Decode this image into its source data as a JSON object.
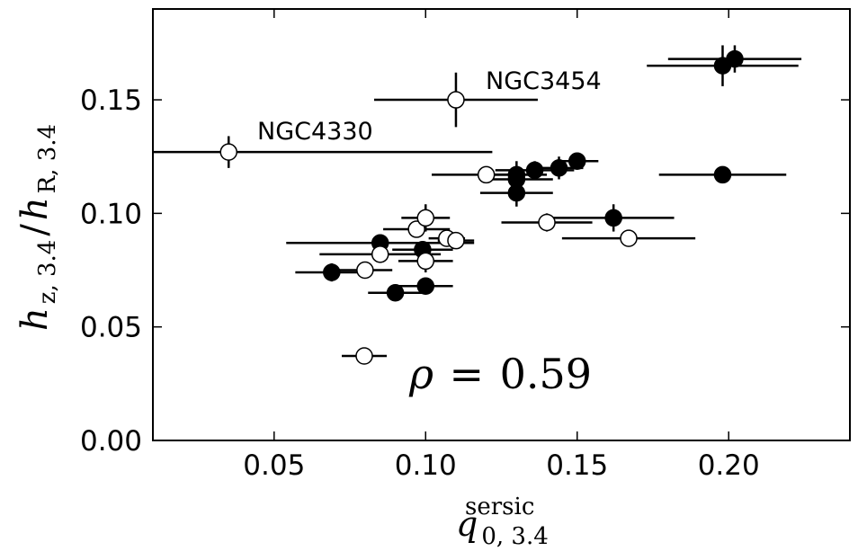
{
  "chart_data": {
    "type": "scatter",
    "title": "",
    "xlabel": {
      "symbol": "q",
      "subscript": "0, 3.4",
      "superscript": "sersic"
    },
    "ylabel": {
      "numerator_symbol": "h",
      "numerator_subscript": "z, 3.4",
      "slash": "/",
      "denominator_symbol": "h",
      "denominator_subscript": "R, 3.4"
    },
    "xlim": [
      0.01,
      0.24
    ],
    "ylim": [
      0.0,
      0.19
    ],
    "xticks": [
      {
        "value": 0.05,
        "label": "0.05"
      },
      {
        "value": 0.1,
        "label": "0.10"
      },
      {
        "value": 0.15,
        "label": "0.15"
      },
      {
        "value": 0.2,
        "label": "0.20"
      }
    ],
    "yticks": [
      {
        "value": 0.0,
        "label": "0.00"
      },
      {
        "value": 0.05,
        "label": "0.05"
      },
      {
        "value": 0.1,
        "label": "0.10"
      },
      {
        "value": 0.15,
        "label": "0.15"
      }
    ],
    "grid": false,
    "colors": {
      "filled": "#000000",
      "open_fill": "#ffffff",
      "edge": "#000000"
    },
    "series": [
      {
        "marker": "filled-circle",
        "points": [
          {
            "x": 0.069,
            "y": 0.074,
            "xerr": 0.012,
            "yerr": 0.004
          },
          {
            "x": 0.085,
            "y": 0.087,
            "xerr": 0.031,
            "yerr": 0.003
          },
          {
            "x": 0.09,
            "y": 0.065,
            "xerr": 0.009,
            "yerr": 0.002
          },
          {
            "x": 0.099,
            "y": 0.084,
            "xerr": 0.01,
            "yerr": 0.002
          },
          {
            "x": 0.1,
            "y": 0.068,
            "xerr": 0.009,
            "yerr": 0.003
          },
          {
            "x": 0.13,
            "y": 0.109,
            "xerr": 0.012,
            "yerr": 0.006
          },
          {
            "x": 0.13,
            "y": 0.115,
            "xerr": 0.012,
            "yerr": 0.003
          },
          {
            "x": 0.13,
            "y": 0.117,
            "xerr": 0.01,
            "yerr": 0.006
          },
          {
            "x": 0.136,
            "y": 0.119,
            "xerr": 0.013,
            "yerr": 0.004
          },
          {
            "x": 0.144,
            "y": 0.12,
            "xerr": 0.008,
            "yerr": 0.005
          },
          {
            "x": 0.15,
            "y": 0.123,
            "xerr": 0.007,
            "yerr": 0.003
          },
          {
            "x": 0.162,
            "y": 0.098,
            "xerr": 0.02,
            "yerr": 0.006
          },
          {
            "x": 0.198,
            "y": 0.117,
            "xerr": 0.021,
            "yerr": 0.002
          },
          {
            "x": 0.198,
            "y": 0.165,
            "xerr": 0.025,
            "yerr": 0.009
          },
          {
            "x": 0.202,
            "y": 0.168,
            "xerr": 0.022,
            "yerr": 0.006
          }
        ]
      },
      {
        "marker": "open-circle",
        "points": [
          {
            "x": 0.035,
            "y": 0.127,
            "xerr": 0.087,
            "yerr": 0.007,
            "label": "NGC4330"
          },
          {
            "x": 0.08,
            "y": 0.075,
            "xerr": 0.009,
            "yerr": 0.002
          },
          {
            "x": 0.085,
            "y": 0.082,
            "xerr": 0.02,
            "yerr": 0.002
          },
          {
            "x": 0.097,
            "y": 0.093,
            "xerr": 0.011,
            "yerr": 0.002
          },
          {
            "x": 0.1,
            "y": 0.098,
            "xerr": 0.008,
            "yerr": 0.006
          },
          {
            "x": 0.1,
            "y": 0.079,
            "xerr": 0.009,
            "yerr": 0.005
          },
          {
            "x": 0.107,
            "y": 0.089,
            "xerr": 0.006,
            "yerr": 0.002
          },
          {
            "x": 0.11,
            "y": 0.088,
            "xerr": 0.006,
            "yerr": 0.002
          },
          {
            "x": 0.11,
            "y": 0.15,
            "xerr": 0.027,
            "yerr": 0.012,
            "label": "NGC3454"
          },
          {
            "x": 0.12,
            "y": 0.117,
            "xerr": 0.018,
            "yerr": 0.002
          },
          {
            "x": 0.14,
            "y": 0.096,
            "xerr": 0.015,
            "yerr": 0.004
          },
          {
            "x": 0.167,
            "y": 0.089,
            "xerr": 0.022,
            "yerr": 0.002
          }
        ]
      }
    ],
    "annotations": [
      {
        "text": "NGC4330"
      },
      {
        "text": "NGC3454"
      }
    ],
    "legend": {
      "position": "lower-center",
      "marker": "open-circle",
      "symbol": "ρ",
      "equals": "=",
      "value": "0.59"
    }
  }
}
